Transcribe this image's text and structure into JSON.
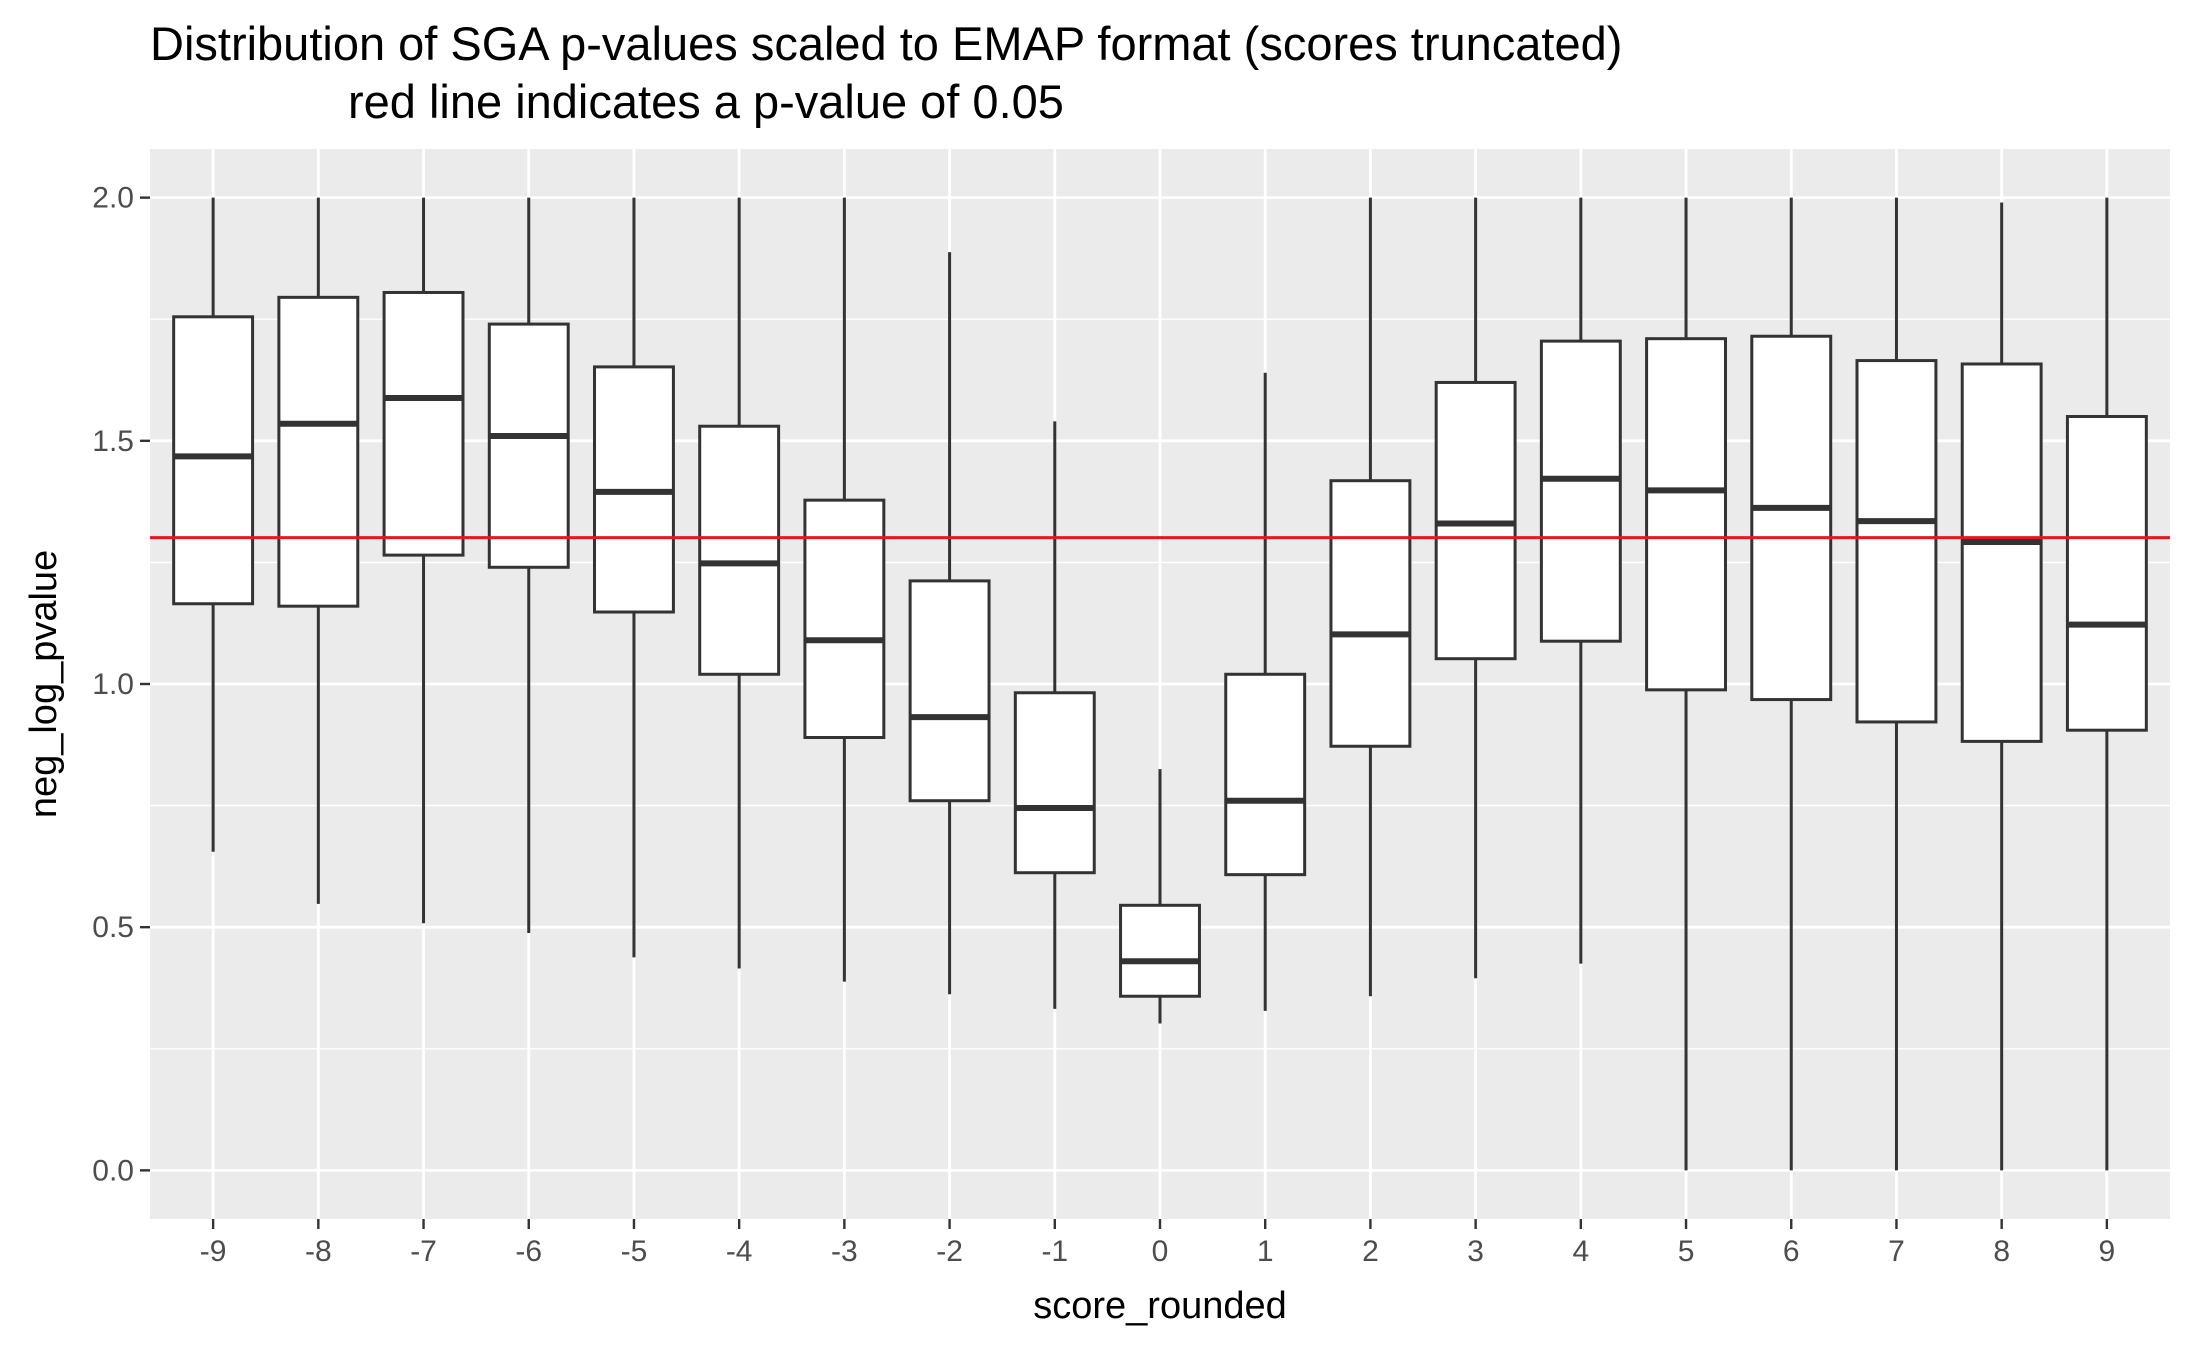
{
  "chart_data": {
    "type": "box",
    "title_lines": [
      "Distribution of SGA p-values scaled to EMAP format (scores truncated)",
      "red line indicates a p-value of 0.05"
    ],
    "xlabel": "score_rounded",
    "ylabel": "neg_log_pvalue",
    "ylim": [
      -0.1,
      2.1
    ],
    "y_ticks": [
      0.0,
      0.5,
      1.0,
      1.5,
      2.0
    ],
    "y_tick_labels": [
      "0.0",
      "0.5",
      "1.0",
      "1.5",
      "2.0"
    ],
    "categories": [
      "-9",
      "-8",
      "-7",
      "-6",
      "-5",
      "-4",
      "-3",
      "-2",
      "-1",
      "0",
      "1",
      "2",
      "3",
      "4",
      "5",
      "6",
      "7",
      "8",
      "9"
    ],
    "boxes": [
      {
        "x": "-9",
        "min": 0.655,
        "q1": 1.165,
        "median": 1.468,
        "q3": 1.755,
        "max": 2.0
      },
      {
        "x": "-8",
        "min": 0.548,
        "q1": 1.16,
        "median": 1.535,
        "q3": 1.795,
        "max": 2.0
      },
      {
        "x": "-7",
        "min": 0.508,
        "q1": 1.265,
        "median": 1.588,
        "q3": 1.805,
        "max": 2.0
      },
      {
        "x": "-6",
        "min": 0.488,
        "q1": 1.24,
        "median": 1.51,
        "q3": 1.74,
        "max": 2.0
      },
      {
        "x": "-5",
        "min": 0.438,
        "q1": 1.148,
        "median": 1.395,
        "q3": 1.652,
        "max": 2.0
      },
      {
        "x": "-4",
        "min": 0.415,
        "q1": 1.02,
        "median": 1.248,
        "q3": 1.53,
        "max": 2.0
      },
      {
        "x": "-3",
        "min": 0.388,
        "q1": 0.89,
        "median": 1.09,
        "q3": 1.378,
        "max": 2.0
      },
      {
        "x": "-2",
        "min": 0.362,
        "q1": 0.76,
        "median": 0.932,
        "q3": 1.212,
        "max": 1.888
      },
      {
        "x": "-1",
        "min": 0.332,
        "q1": 0.612,
        "median": 0.745,
        "q3": 0.982,
        "max": 1.54
      },
      {
        "x": "0",
        "min": 0.302,
        "q1": 0.358,
        "median": 0.43,
        "q3": 0.545,
        "max": 0.825
      },
      {
        "x": "1",
        "min": 0.328,
        "q1": 0.608,
        "median": 0.76,
        "q3": 1.02,
        "max": 1.64
      },
      {
        "x": "2",
        "min": 0.358,
        "q1": 0.872,
        "median": 1.102,
        "q3": 1.418,
        "max": 2.0
      },
      {
        "x": "3",
        "min": 0.395,
        "q1": 1.052,
        "median": 1.33,
        "q3": 1.62,
        "max": 2.0
      },
      {
        "x": "4",
        "min": 0.425,
        "q1": 1.088,
        "median": 1.422,
        "q3": 1.705,
        "max": 2.0
      },
      {
        "x": "5",
        "min": 0.0,
        "q1": 0.988,
        "median": 1.398,
        "q3": 1.71,
        "max": 2.0
      },
      {
        "x": "6",
        "min": 0.0,
        "q1": 0.968,
        "median": 1.362,
        "q3": 1.715,
        "max": 2.0
      },
      {
        "x": "7",
        "min": 0.0,
        "q1": 0.922,
        "median": 1.335,
        "q3": 1.665,
        "max": 2.0
      },
      {
        "x": "8",
        "min": 0.0,
        "q1": 0.882,
        "median": 1.292,
        "q3": 1.658,
        "max": 1.99
      },
      {
        "x": "9",
        "min": 0.0,
        "q1": 0.905,
        "median": 1.122,
        "q3": 1.55,
        "max": 2.0
      }
    ],
    "reference_line": {
      "y": 1.30103,
      "color": "#e31a1c"
    },
    "colors": {
      "panel": "#ebebeb",
      "grid_major": "#ffffff",
      "box_fill": "#ffffff",
      "box_stroke": "#333333",
      "tick_text": "#4d4d4d",
      "tick_mark": "#333333"
    },
    "grid": true,
    "legend": "none"
  }
}
